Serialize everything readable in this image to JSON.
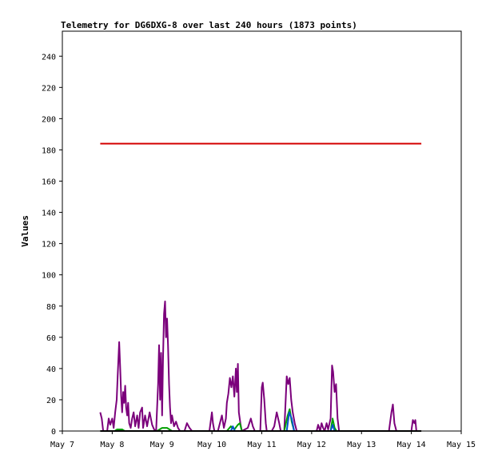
{
  "chart_data": {
    "type": "line",
    "title": "Telemetry for DG6DXG-8 over last 240 hours (1873 points)",
    "xlabel": "",
    "ylabel": "Values",
    "x_ticks": [
      "May 7",
      "May 8",
      "May 9",
      "May 10",
      "May 11",
      "May 12",
      "May 13",
      "May 14",
      "May 15"
    ],
    "xlim": [
      "May 7",
      "May 15"
    ],
    "y_ticks": [
      0,
      20,
      40,
      60,
      80,
      100,
      120,
      140,
      160,
      180,
      200,
      220,
      240
    ],
    "ylim": [
      0,
      256
    ],
    "grid": false,
    "legend": "none",
    "series": [
      {
        "color": "#d40000",
        "points": [
          [
            7.76,
            184
          ],
          [
            14.2,
            184
          ]
        ]
      },
      {
        "color": "#7b007b",
        "points": [
          [
            7.76,
            12
          ],
          [
            7.79,
            8
          ],
          [
            7.82,
            0
          ],
          [
            7.9,
            0
          ],
          [
            7.93,
            8
          ],
          [
            7.96,
            4
          ],
          [
            8.0,
            8
          ],
          [
            8.03,
            2
          ],
          [
            8.06,
            12
          ],
          [
            8.09,
            20
          ],
          [
            8.11,
            35
          ],
          [
            8.13,
            50
          ],
          [
            8.14,
            57
          ],
          [
            8.16,
            40
          ],
          [
            8.18,
            22
          ],
          [
            8.2,
            12
          ],
          [
            8.22,
            25
          ],
          [
            8.24,
            18
          ],
          [
            8.26,
            29
          ],
          [
            8.28,
            15
          ],
          [
            8.3,
            10
          ],
          [
            8.32,
            18
          ],
          [
            8.34,
            5
          ],
          [
            8.37,
            2
          ],
          [
            8.4,
            8
          ],
          [
            8.43,
            12
          ],
          [
            8.46,
            3
          ],
          [
            8.5,
            10
          ],
          [
            8.53,
            2
          ],
          [
            8.56,
            12
          ],
          [
            8.6,
            15
          ],
          [
            8.62,
            2
          ],
          [
            8.66,
            10
          ],
          [
            8.7,
            3
          ],
          [
            8.75,
            12
          ],
          [
            8.8,
            4
          ],
          [
            8.84,
            1
          ],
          [
            8.88,
            0
          ],
          [
            8.92,
            30
          ],
          [
            8.94,
            55
          ],
          [
            8.96,
            20
          ],
          [
            8.98,
            50
          ],
          [
            9.0,
            10
          ],
          [
            9.02,
            48
          ],
          [
            9.04,
            75
          ],
          [
            9.06,
            83
          ],
          [
            9.08,
            60
          ],
          [
            9.1,
            72
          ],
          [
            9.12,
            55
          ],
          [
            9.14,
            30
          ],
          [
            9.16,
            15
          ],
          [
            9.18,
            5
          ],
          [
            9.2,
            10
          ],
          [
            9.24,
            3
          ],
          [
            9.28,
            6
          ],
          [
            9.32,
            2
          ],
          [
            9.36,
            0
          ],
          [
            9.45,
            0
          ],
          [
            9.5,
            5
          ],
          [
            9.55,
            2
          ],
          [
            9.6,
            0
          ],
          [
            9.95,
            0
          ],
          [
            10.0,
            12
          ],
          [
            10.02,
            5
          ],
          [
            10.05,
            0
          ],
          [
            10.12,
            0
          ],
          [
            10.16,
            5
          ],
          [
            10.2,
            10
          ],
          [
            10.24,
            2
          ],
          [
            10.28,
            8
          ],
          [
            10.3,
            18
          ],
          [
            10.33,
            24
          ],
          [
            10.36,
            34
          ],
          [
            10.39,
            28
          ],
          [
            10.42,
            35
          ],
          [
            10.45,
            22
          ],
          [
            10.48,
            40
          ],
          [
            10.5,
            25
          ],
          [
            10.52,
            43
          ],
          [
            10.54,
            12
          ],
          [
            10.57,
            5
          ],
          [
            10.6,
            0
          ],
          [
            10.72,
            2
          ],
          [
            10.78,
            8
          ],
          [
            10.82,
            3
          ],
          [
            10.86,
            0
          ],
          [
            10.97,
            0
          ],
          [
            11.0,
            28
          ],
          [
            11.02,
            31
          ],
          [
            11.05,
            20
          ],
          [
            11.08,
            5
          ],
          [
            11.1,
            0
          ],
          [
            11.2,
            0
          ],
          [
            11.25,
            3
          ],
          [
            11.3,
            12
          ],
          [
            11.35,
            5
          ],
          [
            11.38,
            0
          ],
          [
            11.45,
            0
          ],
          [
            11.48,
            20
          ],
          [
            11.5,
            35
          ],
          [
            11.53,
            30
          ],
          [
            11.56,
            34
          ],
          [
            11.59,
            20
          ],
          [
            11.62,
            12
          ],
          [
            11.66,
            5
          ],
          [
            11.7,
            0
          ],
          [
            12.1,
            0
          ],
          [
            12.13,
            4
          ],
          [
            12.17,
            0
          ],
          [
            12.2,
            5
          ],
          [
            12.23,
            2
          ],
          [
            12.26,
            0
          ],
          [
            12.3,
            5
          ],
          [
            12.33,
            1
          ],
          [
            12.38,
            8
          ],
          [
            12.41,
            42
          ],
          [
            12.43,
            38
          ],
          [
            12.46,
            25
          ],
          [
            12.49,
            30
          ],
          [
            12.52,
            8
          ],
          [
            12.55,
            0
          ],
          [
            13.55,
            0
          ],
          [
            13.6,
            12
          ],
          [
            13.63,
            17
          ],
          [
            13.66,
            5
          ],
          [
            13.7,
            0
          ],
          [
            14.0,
            0
          ],
          [
            14.03,
            7
          ],
          [
            14.06,
            5
          ],
          [
            14.08,
            7
          ],
          [
            14.1,
            0
          ]
        ]
      },
      {
        "color": "#00a000",
        "points": [
          [
            8.05,
            0
          ],
          [
            8.1,
            1
          ],
          [
            8.2,
            1
          ],
          [
            8.25,
            0
          ],
          [
            8.9,
            0
          ],
          [
            9.0,
            2
          ],
          [
            9.1,
            2
          ],
          [
            9.2,
            0
          ],
          [
            10.3,
            0
          ],
          [
            10.38,
            3
          ],
          [
            10.45,
            1
          ],
          [
            10.52,
            4
          ],
          [
            10.56,
            5
          ],
          [
            10.6,
            0
          ],
          [
            11.45,
            0
          ],
          [
            11.52,
            10
          ],
          [
            11.56,
            14
          ],
          [
            11.6,
            6
          ],
          [
            11.65,
            0
          ],
          [
            12.38,
            0
          ],
          [
            12.42,
            8
          ],
          [
            12.46,
            2
          ],
          [
            12.5,
            0
          ]
        ]
      },
      {
        "color": "#0055cc",
        "points": [
          [
            10.38,
            0
          ],
          [
            10.42,
            3
          ],
          [
            10.46,
            0
          ],
          [
            11.5,
            0
          ],
          [
            11.55,
            12
          ],
          [
            11.6,
            8
          ],
          [
            11.65,
            0
          ],
          [
            12.38,
            0
          ],
          [
            12.42,
            4
          ],
          [
            12.46,
            0
          ]
        ]
      },
      {
        "color": "#000000",
        "points": [
          [
            7.76,
            0
          ],
          [
            14.2,
            0
          ]
        ]
      }
    ]
  }
}
